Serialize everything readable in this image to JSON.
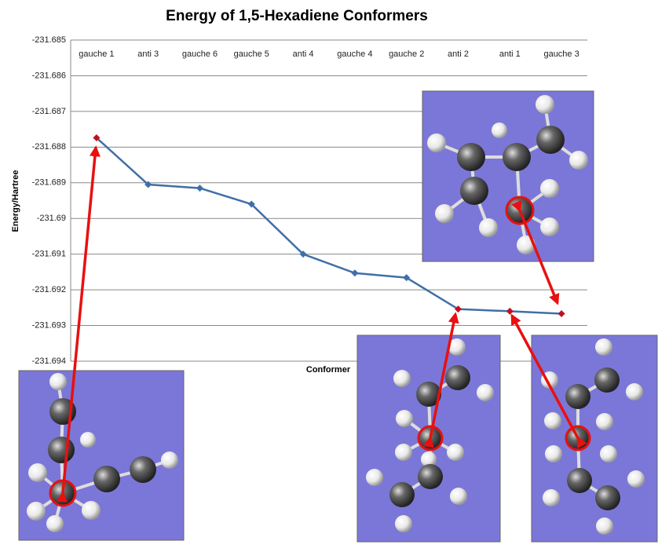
{
  "chart_data": {
    "type": "line",
    "title": "Energy of 1,5-Hexadiene Conformers",
    "x_label": "Conformer",
    "y_label": "Energy/Hartree",
    "categories": [
      "gauche 1",
      "anti 3",
      "gauche 6",
      "gauche 5",
      "anti 4",
      "gauche 4",
      "gauche 2",
      "anti 2",
      "anti 1",
      "gauche 3"
    ],
    "series": [
      {
        "color": "#3f6fa8",
        "values": [
          -231.68774,
          -231.68905,
          -231.68915,
          -231.6896,
          -231.691,
          -231.69153,
          -231.69166,
          -231.69254,
          -231.6926,
          -231.69267
        ],
        "marker_colors": [
          "#c0111f",
          "#3f6fa8",
          "#3f6fa8",
          "#3f6fa8",
          "#3f6fa8",
          "#3f6fa8",
          "#3f6fa8",
          "#c0111f",
          "#c0111f",
          "#c0111f"
        ]
      }
    ],
    "ylim": [
      -231.694,
      -231.685
    ],
    "yticks": [
      -231.685,
      -231.686,
      -231.687,
      -231.688,
      -231.689,
      -231.69,
      -231.691,
      -231.692,
      -231.693,
      -231.694
    ],
    "grid": true
  }
}
